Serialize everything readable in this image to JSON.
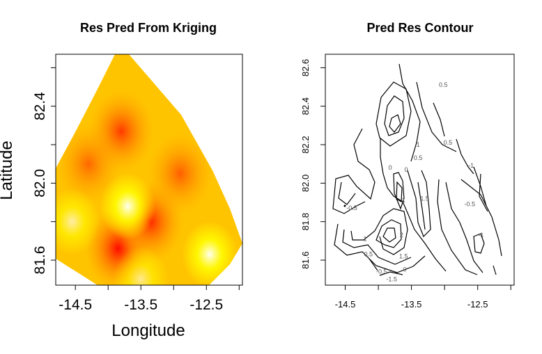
{
  "chart_data": [
    {
      "type": "heatmap",
      "title": "Res Pred From Kriging",
      "xlabel": "Longitude",
      "ylabel": "Latitude",
      "xlim": [
        -14.8,
        -11.95
      ],
      "ylim": [
        81.47,
        82.67
      ],
      "x_ticks": [
        "-14.5",
        "-13.5",
        "-12.5"
      ],
      "y_ticks": [
        "81.6",
        "82.0",
        "82.4"
      ],
      "x_tick_values": [
        -14.5,
        -13.5,
        -12.5
      ],
      "y_tick_values": [
        81.6,
        82.0,
        82.4
      ],
      "colors": {
        "low": "#ffff00",
        "mid": "#ffa500",
        "high": "#ff0000"
      },
      "hotspots": [
        {
          "x": -13.85,
          "y": 81.66,
          "level": 1.0
        },
        {
          "x": -13.8,
          "y": 82.27,
          "level": 0.75
        },
        {
          "x": -13.35,
          "y": 81.8,
          "level": 0.85
        },
        {
          "x": -12.9,
          "y": 82.05,
          "level": 0.55
        },
        {
          "x": -14.3,
          "y": 82.1,
          "level": 0.5
        }
      ],
      "coldspots": [
        {
          "x": -13.7,
          "y": 81.88,
          "level": 1.0
        },
        {
          "x": -12.45,
          "y": 81.63,
          "level": 1.0
        },
        {
          "x": -14.55,
          "y": 81.8,
          "level": 0.7
        },
        {
          "x": -13.5,
          "y": 81.5,
          "level": 0.6
        }
      ]
    },
    {
      "type": "contour",
      "title": "Pred Res Contour",
      "xlim": [
        -14.8,
        -11.95
      ],
      "ylim": [
        81.47,
        82.67
      ],
      "x_ticks": [
        "-14.5",
        "-13.5",
        "-12.5"
      ],
      "y_ticks": [
        "81.6",
        "81.8",
        "82.0",
        "82.2",
        "82.4",
        "82.6"
      ],
      "x_tick_values": [
        -14.5,
        -13.5,
        -12.5
      ],
      "y_tick_values": [
        81.6,
        81.8,
        82.0,
        82.2,
        82.4,
        82.6
      ],
      "contour_labels": [
        {
          "text": "0.5",
          "x": -13.02,
          "y": 82.5
        },
        {
          "text": "1",
          "x": -13.4,
          "y": 82.19
        },
        {
          "text": "0.5",
          "x": -12.95,
          "y": 82.2
        },
        {
          "text": "0.5",
          "x": -13.4,
          "y": 82.12
        },
        {
          "text": "0",
          "x": -13.58,
          "y": 82.06
        },
        {
          "text": "0",
          "x": -13.82,
          "y": 82.07
        },
        {
          "text": "-1",
          "x": -12.6,
          "y": 82.08
        },
        {
          "text": "-0.5",
          "x": -14.4,
          "y": 81.86
        },
        {
          "text": "-0.5",
          "x": -12.62,
          "y": 81.88
        },
        {
          "text": "-1",
          "x": -12.45,
          "y": 81.72
        },
        {
          "text": "1.5",
          "x": -13.3,
          "y": 81.91
        },
        {
          "text": "1",
          "x": -13.62,
          "y": 81.9
        },
        {
          "text": "1",
          "x": -14.2,
          "y": 81.7
        },
        {
          "text": "2",
          "x": -13.65,
          "y": 81.72
        },
        {
          "text": "0.5",
          "x": -14.15,
          "y": 81.62
        },
        {
          "text": "1.5",
          "x": -13.62,
          "y": 81.61
        },
        {
          "text": "-0.5",
          "x": -13.95,
          "y": 81.53
        },
        {
          "text": "0",
          "x": -13.6,
          "y": 81.54
        },
        {
          "text": "-1.5",
          "x": -13.8,
          "y": 81.49
        }
      ]
    }
  ]
}
